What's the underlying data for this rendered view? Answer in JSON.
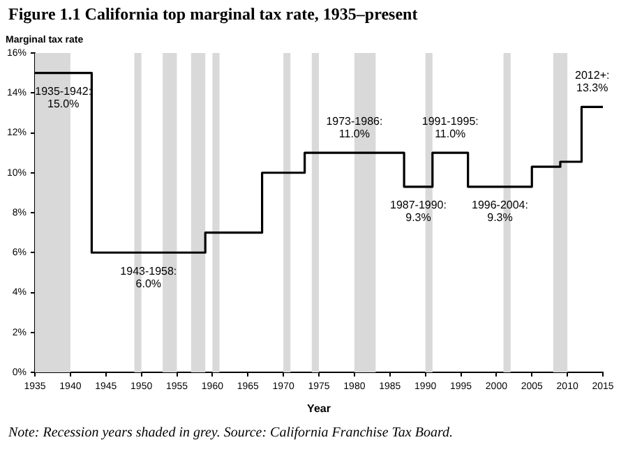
{
  "chart_data": {
    "type": "step",
    "title": "Figure 1.1 California top marginal tax rate, 1935–present",
    "xlabel": "Year",
    "ylabel": "Marginal tax rate",
    "x": [
      1935,
      1943,
      1959,
      1967,
      1973,
      1987,
      1991,
      1996,
      2005,
      2009,
      2012,
      2015
    ],
    "series": [
      {
        "color": "#000000",
        "values": [
          15,
          6,
          7,
          10,
          11,
          9.3,
          11,
          9.3,
          10.3,
          10.55,
          13.3,
          13.3
        ]
      }
    ],
    "xlim": [
      1935,
      2015
    ],
    "xticks": [
      1935,
      1940,
      1945,
      1950,
      1955,
      1960,
      1965,
      1970,
      1975,
      1980,
      1985,
      1990,
      1995,
      2000,
      2005,
      2010,
      2015
    ],
    "ylim": [
      0,
      16
    ],
    "yticks": [
      {
        "value": 0,
        "label": "0%"
      },
      {
        "value": 2,
        "label": "2%"
      },
      {
        "value": 4,
        "label": "4%"
      },
      {
        "value": 6,
        "label": "6%"
      },
      {
        "value": 8,
        "label": "8%"
      },
      {
        "value": 10,
        "label": "10%"
      },
      {
        "value": 12,
        "label": "12%"
      },
      {
        "value": 14,
        "label": "14%"
      },
      {
        "value": 16,
        "label": "16%"
      }
    ],
    "bands": [
      {
        "axis": "x",
        "from": 1935,
        "to": 1940,
        "color": "#d9d9d9"
      },
      {
        "axis": "x",
        "from": 1949,
        "to": 1950,
        "color": "#d9d9d9"
      },
      {
        "axis": "x",
        "from": 1953,
        "to": 1955,
        "color": "#d9d9d9"
      },
      {
        "axis": "x",
        "from": 1957,
        "to": 1959,
        "color": "#d9d9d9"
      },
      {
        "axis": "x",
        "from": 1960,
        "to": 1961,
        "color": "#d9d9d9"
      },
      {
        "axis": "x",
        "from": 1970,
        "to": 1971,
        "color": "#d9d9d9"
      },
      {
        "axis": "x",
        "from": 1974,
        "to": 1975,
        "color": "#d9d9d9"
      },
      {
        "axis": "x",
        "from": 1980,
        "to": 1983,
        "color": "#d9d9d9"
      },
      {
        "axis": "x",
        "from": 1990,
        "to": 1991,
        "color": "#d9d9d9"
      },
      {
        "axis": "x",
        "from": 2001,
        "to": 2002,
        "color": "#d9d9d9"
      },
      {
        "axis": "x",
        "from": 2008,
        "to": 2010,
        "color": "#d9d9d9"
      }
    ],
    "annotations": [
      {
        "text": "1935-1942: 15.0%",
        "x": 1939,
        "y": 15
      },
      {
        "text": "1943-1958: 6.0%",
        "x": 1951,
        "y": 6
      },
      {
        "text": "1973-1986: 11.0%",
        "x": 1980,
        "y": 11
      },
      {
        "text": "1987-1990: 9.3%",
        "x": 1989,
        "y": 9.3
      },
      {
        "text": "1991-1995: 11.0%",
        "x": 1993.5,
        "y": 11
      },
      {
        "text": "1996-2004: 9.3%",
        "x": 2000.5,
        "y": 9.3
      },
      {
        "text": "2012+: 13.3%",
        "x": 2013.5,
        "y": 13.3
      },
      "Note: Recession years shaded in grey. Source: California Franchise Tax Board."
    ],
    "grid": false,
    "legend": false,
    "marker": "none",
    "line_style": "solid"
  }
}
